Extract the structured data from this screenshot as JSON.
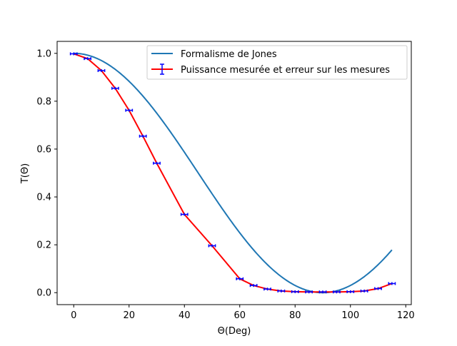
{
  "chart_data": {
    "type": "line",
    "xlabel": "Θ(Deg)",
    "ylabel": "T(Θ)",
    "xlim": [
      -6,
      122
    ],
    "ylim": [
      -0.05,
      1.05
    ],
    "xticks": [
      0,
      20,
      40,
      60,
      80,
      100,
      120
    ],
    "yticks": [
      0.0,
      0.2,
      0.4,
      0.6,
      0.8,
      1.0
    ],
    "grid": false,
    "legend_position": "top-right",
    "series": [
      {
        "name": "Formalisme de Jones",
        "kind": "model",
        "color": "#1f77b4",
        "function": "cos^2(theta)",
        "x_range": [
          0,
          115
        ]
      },
      {
        "name": "Puissance mesurée et erreur sur les mesures",
        "kind": "measured",
        "color": "#ff0000",
        "errorbar_color": "#0000ff",
        "x": [
          0,
          5,
          10,
          15,
          20,
          25,
          30,
          40,
          50,
          60,
          65,
          70,
          75,
          80,
          85,
          90,
          95,
          100,
          105,
          110,
          115
        ],
        "y": [
          0.998,
          0.978,
          0.928,
          0.854,
          0.762,
          0.654,
          0.541,
          0.327,
          0.196,
          0.058,
          0.03,
          0.015,
          0.007,
          0.004,
          0.003,
          0.003,
          0.003,
          0.004,
          0.007,
          0.017,
          0.038
        ],
        "x_error": [
          1.2,
          1.2,
          1.2,
          1.2,
          1.2,
          1.2,
          1.2,
          1.2,
          1.2,
          1.2,
          1.2,
          1.2,
          1.2,
          1.2,
          1.2,
          1.2,
          1.2,
          1.2,
          1.2,
          1.2,
          1.2
        ],
        "y_error": [
          0.006,
          0.006,
          0.006,
          0.006,
          0.006,
          0.006,
          0.006,
          0.006,
          0.006,
          0.006,
          0.006,
          0.006,
          0.006,
          0.006,
          0.006,
          0.006,
          0.006,
          0.006,
          0.006,
          0.006,
          0.006
        ]
      }
    ]
  }
}
